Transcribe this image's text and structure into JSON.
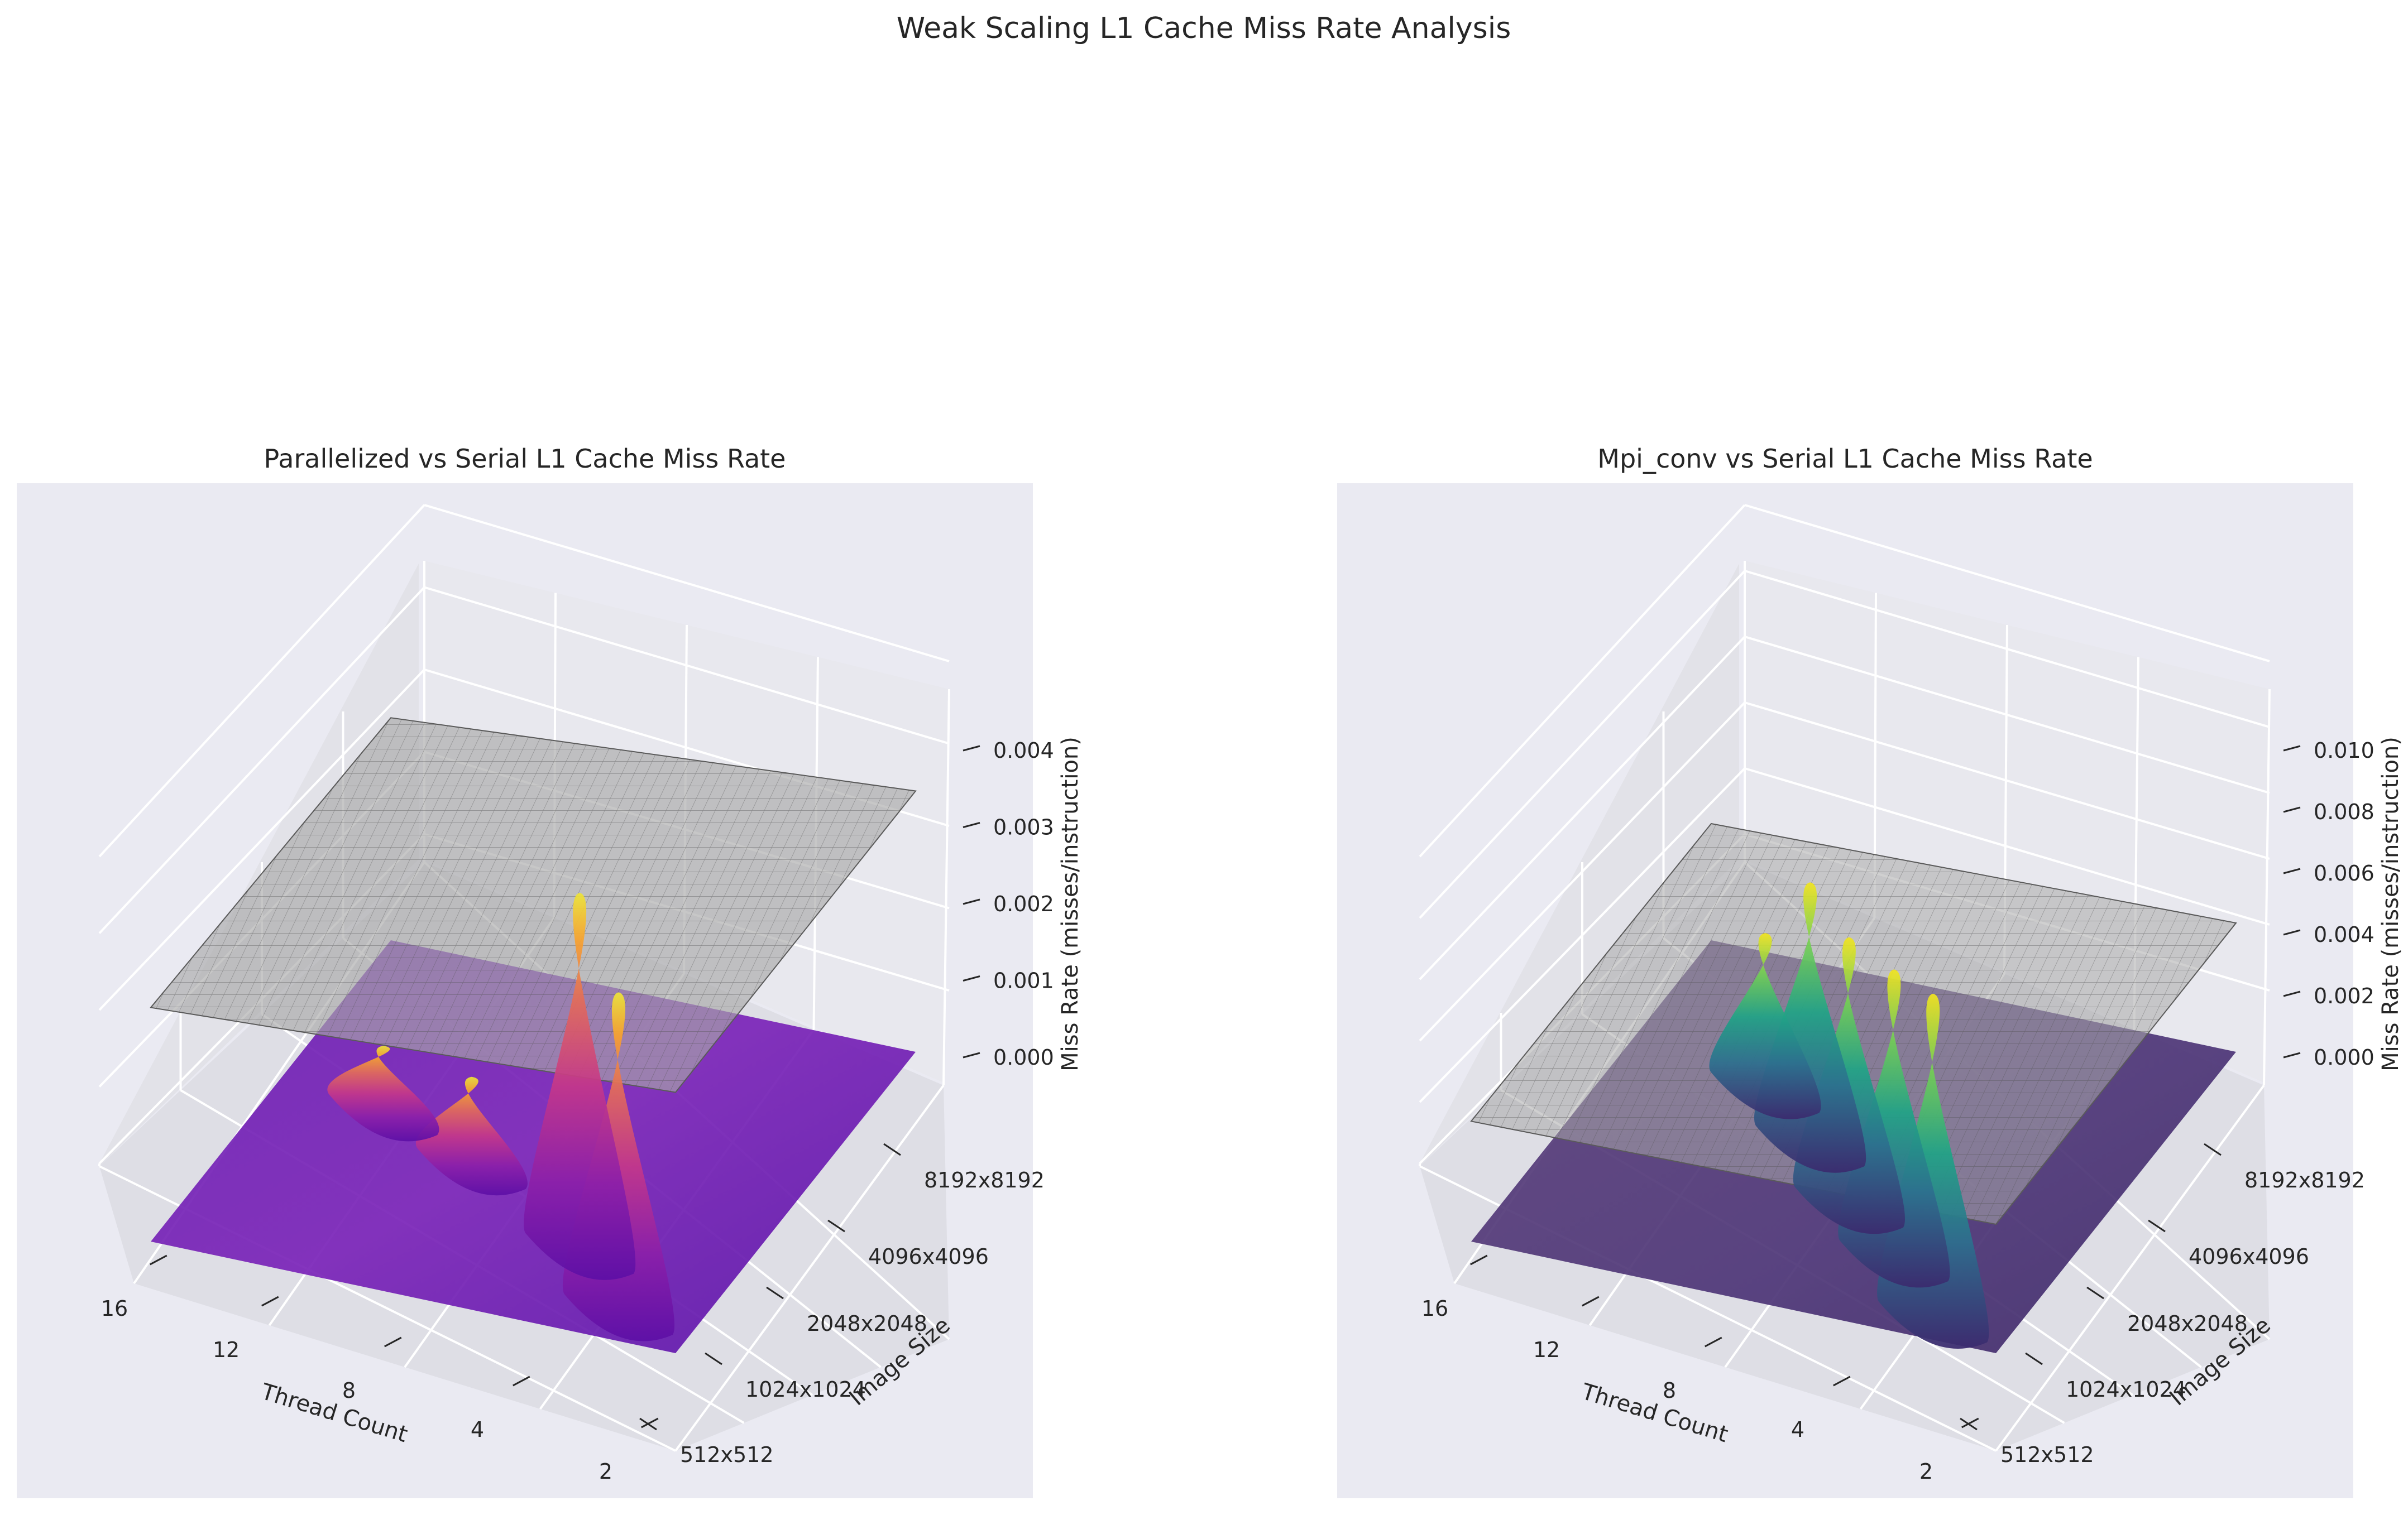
{
  "figure": {
    "title": "Weak Scaling L1 Cache Miss Rate Analysis",
    "background": "#ffffff",
    "axes_background": "#eaeaf2"
  },
  "chart_data": [
    {
      "type": "surface3d",
      "title": "Parallelized vs Serial L1 Cache Miss Rate",
      "xlabel": "Thread Count",
      "ylabel": "Image Size",
      "zlabel": "Miss Rate (misses/instruction)",
      "x_ticks": [
        "2",
        "4",
        "8",
        "12",
        "16"
      ],
      "y_ticks": [
        "512x512",
        "1024x1024",
        "2048x2048",
        "4096x4096",
        "8192x8192"
      ],
      "z_ticks": [
        "0.000",
        "0.001",
        "0.002",
        "0.003",
        "0.004"
      ],
      "zlim": [
        -0.0005,
        0.0048
      ],
      "grid": true,
      "colormap": "plasma",
      "serial_surface": {
        "color": "#a9a9a9",
        "edge": "#5a5a5a",
        "alpha": 0.65
      },
      "peaks": [
        {
          "thread": 14,
          "size_index": 0.3,
          "height": 0.0042
        },
        {
          "thread": 12,
          "size_index": 0.9,
          "height": 0.0047
        },
        {
          "thread": 8,
          "size_index": 1.6,
          "height": 0.0012
        },
        {
          "thread": 5,
          "size_index": 2.0,
          "height": 0.0009
        }
      ],
      "serial_baseline": {
        "min": 0.0029,
        "max": 0.0034
      }
    },
    {
      "type": "surface3d",
      "title": "Mpi_conv vs Serial L1 Cache Miss Rate",
      "xlabel": "Thread Count",
      "ylabel": "Image Size",
      "zlabel": "Miss Rate (misses/instruction)",
      "x_ticks": [
        "2",
        "4",
        "8",
        "12",
        "16"
      ],
      "y_ticks": [
        "512x512",
        "1024x1024",
        "2048x2048",
        "4096x4096",
        "8192x8192"
      ],
      "z_ticks": [
        "0.000",
        "0.002",
        "0.004",
        "0.006",
        "0.008",
        "0.010"
      ],
      "zlim": [
        -0.0015,
        0.0115
      ],
      "grid": true,
      "colormap": "viridis",
      "serial_surface": {
        "color": "#a9a9a9",
        "edge": "#5a5a5a",
        "alpha": 0.55
      },
      "peaks": [
        {
          "thread": 14,
          "size_index": 0.2,
          "height": 0.0107
        },
        {
          "thread": 12,
          "size_index": 0.8,
          "height": 0.0095
        },
        {
          "thread": 10,
          "size_index": 1.3,
          "height": 0.0088
        },
        {
          "thread": 8,
          "size_index": 1.9,
          "height": 0.0086
        },
        {
          "thread": 6,
          "size_index": 2.4,
          "height": 0.0052
        }
      ],
      "serial_baseline": {
        "min": 0.0038,
        "max": 0.0042
      }
    }
  ]
}
